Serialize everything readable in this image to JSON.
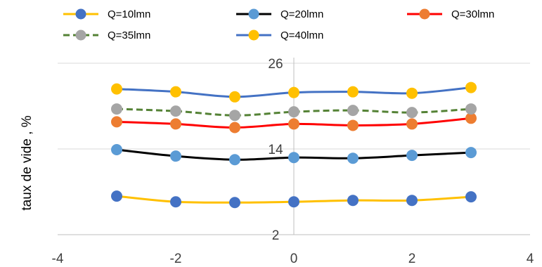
{
  "chart_data": {
    "type": "line",
    "title": "",
    "xlabel": "",
    "ylabel": "taux de vide , %",
    "xlim": [
      -4,
      4
    ],
    "ylim": [
      2,
      26
    ],
    "x_ticks": [
      "-4",
      "-2",
      "0",
      "2",
      "4"
    ],
    "y_ticks": [
      "2",
      "14",
      "26"
    ],
    "grid": "horizontal",
    "legend_position": "top",
    "x": [
      -3,
      -2,
      -1,
      0,
      1,
      2,
      3
    ],
    "series": [
      {
        "name": "Q=10lmn",
        "color": "#FFC000",
        "marker": "#4472C4",
        "dash": "solid",
        "values": [
          7.4,
          6.6,
          6.5,
          6.6,
          6.8,
          6.8,
          7.3
        ]
      },
      {
        "name": "Q=20lmn",
        "color": "#000000",
        "marker": "#5B9BD5",
        "dash": "solid",
        "values": [
          13.9,
          13.0,
          12.5,
          12.8,
          12.7,
          13.1,
          13.5
        ]
      },
      {
        "name": "Q=30lmn",
        "color": "#FF0000",
        "marker": "#ED7D31",
        "dash": "solid",
        "values": [
          17.8,
          17.5,
          17.0,
          17.5,
          17.3,
          17.5,
          18.3
        ]
      },
      {
        "name": "Q=35lmn",
        "color": "#548235",
        "marker": "#A5A5A5",
        "dash": "dashed",
        "values": [
          19.6,
          19.3,
          18.7,
          19.2,
          19.4,
          19.1,
          19.6
        ]
      },
      {
        "name": "Q=40lmn",
        "color": "#4472C4",
        "marker": "#FFC000",
        "dash": "solid",
        "values": [
          22.4,
          22.0,
          21.3,
          21.9,
          22.0,
          21.8,
          22.6
        ]
      }
    ]
  }
}
